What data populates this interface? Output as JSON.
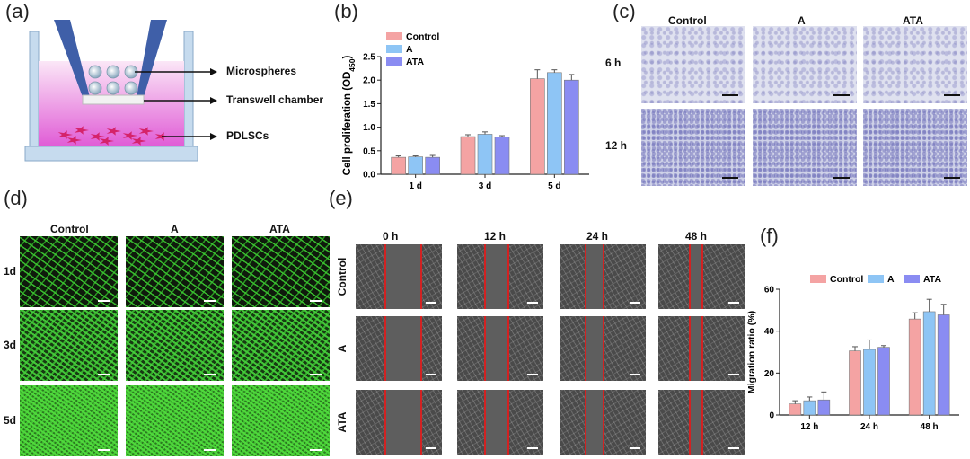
{
  "panels": {
    "a": "(a)",
    "b": "(b)",
    "c": "(c)",
    "d": "(d)",
    "e": "(e)",
    "f": "(f)"
  },
  "schematic": {
    "labels": [
      "Microspheres",
      "Transwell chamber",
      "PDLSCs"
    ]
  },
  "colors": {
    "control": "#f4a3a3",
    "a": "#8ec5f5",
    "ata": "#8a8cf2",
    "bar_edge": "#666",
    "err": "#555",
    "purple_stain": "#8f90c8",
    "green": "#2fb52a",
    "red_line": "#d22222"
  },
  "panel_c": {
    "cols": [
      "Control",
      "A",
      "ATA"
    ],
    "rows": [
      "6 h",
      "12 h"
    ]
  },
  "panel_d": {
    "cols": [
      "Control",
      "A",
      "ATA"
    ],
    "rows": [
      "1d",
      "3d",
      "5d"
    ]
  },
  "panel_e": {
    "cols": [
      "0 h",
      "12 h",
      "24 h",
      "48 h"
    ],
    "rows": [
      "Control",
      "A",
      "ATA"
    ]
  },
  "chart_data": [
    {
      "type": "bar",
      "categories": [
        "1 d",
        "3 d",
        "5 d"
      ],
      "series": [
        {
          "name": "Control",
          "values": [
            0.36,
            0.8,
            2.03
          ],
          "err": [
            0.03,
            0.04,
            0.19
          ]
        },
        {
          "name": "A",
          "values": [
            0.37,
            0.85,
            2.16
          ],
          "err": [
            0.02,
            0.05,
            0.06
          ]
        },
        {
          "name": "ATA",
          "values": [
            0.36,
            0.79,
            2.0
          ],
          "err": [
            0.04,
            0.03,
            0.12
          ]
        }
      ],
      "ylabel": "Cell proliferation (OD",
      "ylabel_sub": "450",
      "ylabel_end": ")",
      "ylim": [
        0,
        2.5
      ],
      "yticks": [
        "0.0",
        "0.5",
        "1.0",
        "1.5",
        "2.0",
        "2.5"
      ],
      "legend": "top-left"
    },
    {
      "type": "bar",
      "categories": [
        "12 h",
        "24 h",
        "48 h"
      ],
      "series": [
        {
          "name": "Control",
          "values": [
            5.3,
            30.6,
            45.8
          ],
          "err": [
            1.5,
            2.0,
            3.0
          ]
        },
        {
          "name": "A",
          "values": [
            6.8,
            31.3,
            49.3
          ],
          "err": [
            1.8,
            4.5,
            5.9
          ]
        },
        {
          "name": "ATA",
          "values": [
            7.2,
            32.3,
            47.8
          ],
          "err": [
            3.8,
            0.8,
            5.0
          ]
        }
      ],
      "ylabel": "Migration ratio (%)",
      "ylim": [
        0,
        60
      ],
      "yticks": [
        "0",
        "20",
        "40",
        "60"
      ],
      "legend": "top"
    }
  ]
}
